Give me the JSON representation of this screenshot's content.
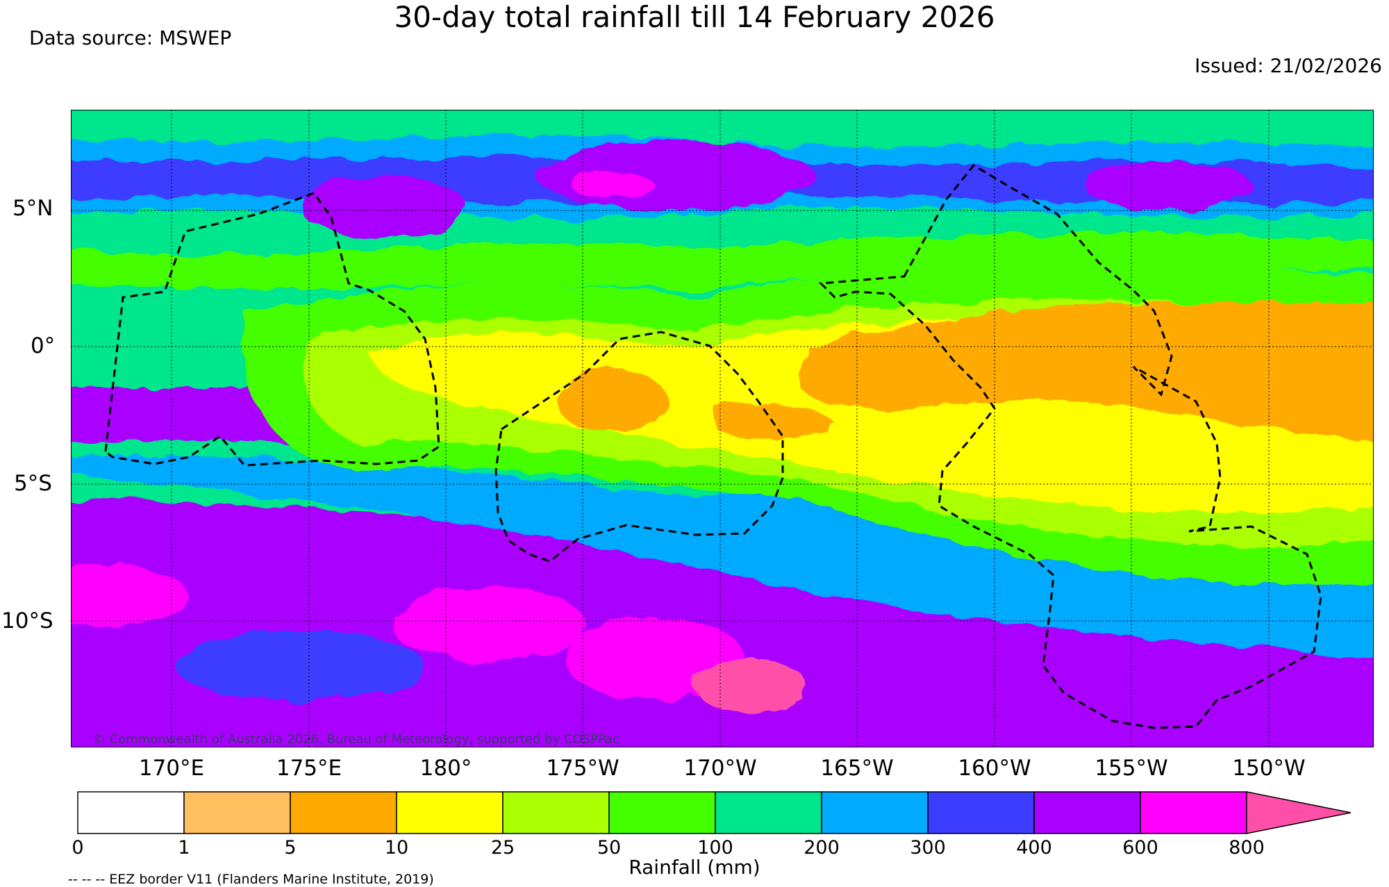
{
  "title": "30-day total rainfall till 14 February 2026",
  "data_source": "Data source: MSWEP",
  "issued": "Issued: 21/02/2026",
  "copyright": "© Commonwealth of Australia 2026, Bureau of Meteorology, supported by COSPPac",
  "latitude_labels": [
    "5°N",
    "0°",
    "5°S",
    "10°S"
  ],
  "longitude_labels": [
    "170°E",
    "175°E",
    "180°",
    "175°W",
    "170°W",
    "165°W",
    "160°W",
    "155°W",
    "150°W"
  ],
  "colorbar": {
    "label": "Rainfall (mm)",
    "ticks": [
      "0",
      "1",
      "5",
      "10",
      "25",
      "50",
      "100",
      "200",
      "300",
      "400",
      "600",
      "800"
    ],
    "colors": [
      "#ffffff",
      "#ffbf5f",
      "#ffaa00",
      "#ffff00",
      "#aaff00",
      "#44ff00",
      "#00e68c",
      "#00aaff",
      "#3c3cff",
      "#aa00ff",
      "#ff00ff",
      "#ff4fa8"
    ]
  },
  "eez_note": "-- -- -- EEZ border V11 (Flanders Marine Institute, 2019)"
}
